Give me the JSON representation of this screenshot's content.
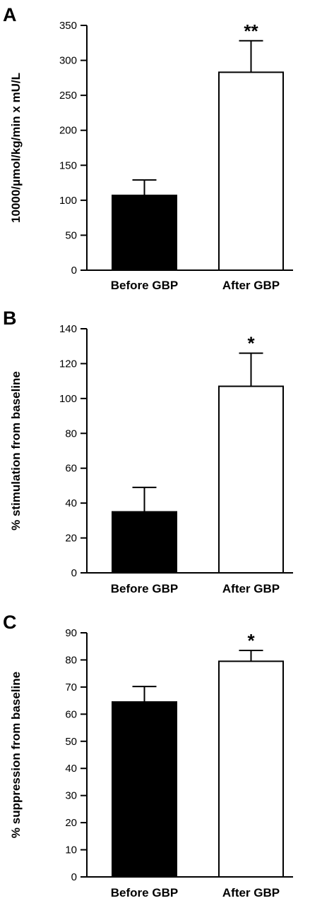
{
  "chart_data": [
    {
      "type": "bar",
      "panel_label": "A",
      "categories": [
        "Before GBP",
        "After GBP"
      ],
      "values": [
        107,
        283
      ],
      "errors": [
        22,
        45
      ],
      "significance": [
        "",
        "**"
      ],
      "bar_colors": [
        "#000000",
        "#ffffff"
      ],
      "ylabel": "10000/µmol/kg/min x mU/L",
      "ylim": [
        0,
        350
      ],
      "yticks": [
        0,
        50,
        100,
        150,
        200,
        250,
        300,
        350
      ],
      "grid": false
    },
    {
      "type": "bar",
      "panel_label": "B",
      "categories": [
        "Before GBP",
        "After GBP"
      ],
      "values": [
        35,
        107
      ],
      "errors": [
        14,
        19
      ],
      "significance": [
        "",
        "*"
      ],
      "bar_colors": [
        "#000000",
        "#ffffff"
      ],
      "ylabel": "% stimulation  from baseline",
      "ylim": [
        0,
        140
      ],
      "yticks": [
        0,
        20,
        40,
        60,
        80,
        100,
        120,
        140
      ],
      "grid": false
    },
    {
      "type": "bar",
      "panel_label": "C",
      "categories": [
        "Before GBP",
        "After GBP"
      ],
      "values": [
        64.5,
        79.5
      ],
      "errors": [
        5.7,
        4
      ],
      "significance": [
        "",
        "*"
      ],
      "bar_colors": [
        "#000000",
        "#ffffff"
      ],
      "ylabel": "% suppression  from baseline",
      "ylim": [
        0,
        90
      ],
      "yticks": [
        0,
        10,
        20,
        30,
        40,
        50,
        60,
        70,
        80,
        90
      ],
      "grid": false
    }
  ]
}
